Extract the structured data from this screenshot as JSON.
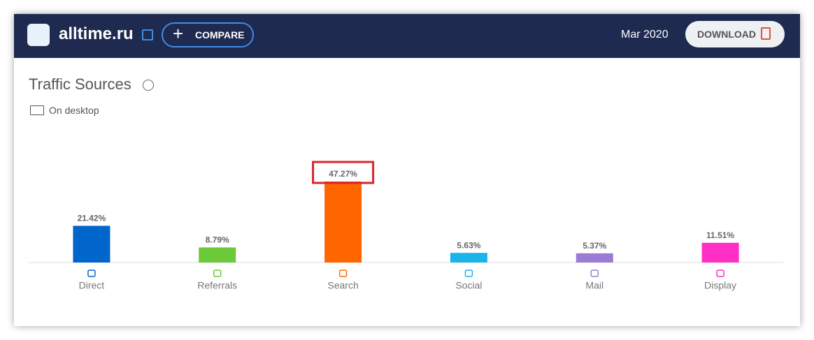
{
  "header": {
    "site": "alltime.ru",
    "compare": "COMPARE",
    "date": "Mar 2020",
    "download": "DOWNLOAD"
  },
  "card": {
    "title": "Traffic Sources",
    "device": "On desktop"
  },
  "chart_data": {
    "type": "bar",
    "categories": [
      "Direct",
      "Referrals",
      "Search",
      "Social",
      "Mail",
      "Display"
    ],
    "values": [
      21.42,
      8.79,
      47.27,
      5.63,
      5.37,
      11.51
    ],
    "value_labels": [
      "21.42%",
      "8.79%",
      "47.27%",
      "5.63%",
      "5.37%",
      "11.51%"
    ],
    "colors": [
      "#0066cc",
      "#6cc93a",
      "#ff6600",
      "#19b5ea",
      "#9a7bd6",
      "#ff2ec4"
    ]
  }
}
